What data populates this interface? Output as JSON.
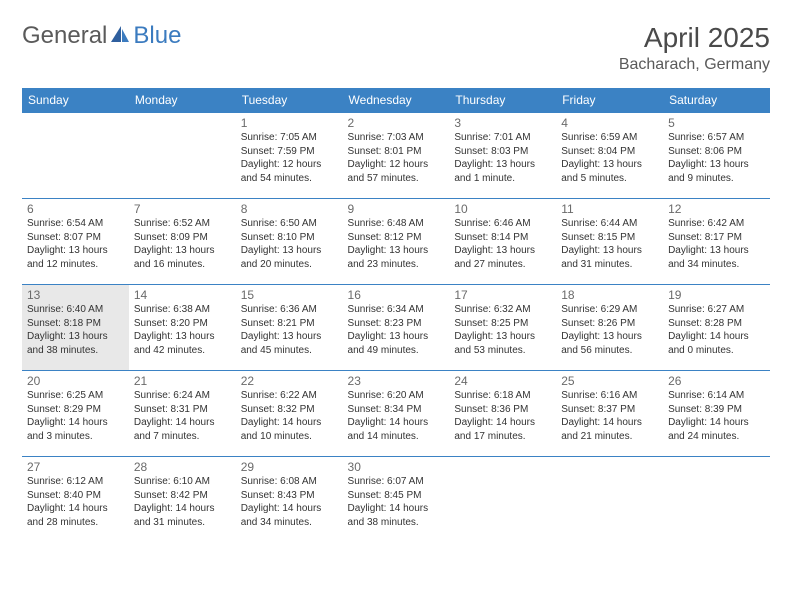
{
  "brand": {
    "part1": "General",
    "part2": "Blue"
  },
  "title": "April 2025",
  "location": "Bacharach, Germany",
  "colors": {
    "header_bg": "#3b82c4",
    "header_text": "#ffffff",
    "border": "#3b82c4",
    "today_bg": "#e8e8e8",
    "brand_blue": "#3b7bbf",
    "brand_gray": "#5a5a5a"
  },
  "weekdays": [
    "Sunday",
    "Monday",
    "Tuesday",
    "Wednesday",
    "Thursday",
    "Friday",
    "Saturday"
  ],
  "today_day": 13,
  "grid": [
    [
      null,
      null,
      {
        "d": 1,
        "sr": "7:05 AM",
        "ss": "7:59 PM",
        "dl": "12 hours and 54 minutes."
      },
      {
        "d": 2,
        "sr": "7:03 AM",
        "ss": "8:01 PM",
        "dl": "12 hours and 57 minutes."
      },
      {
        "d": 3,
        "sr": "7:01 AM",
        "ss": "8:03 PM",
        "dl": "13 hours and 1 minute."
      },
      {
        "d": 4,
        "sr": "6:59 AM",
        "ss": "8:04 PM",
        "dl": "13 hours and 5 minutes."
      },
      {
        "d": 5,
        "sr": "6:57 AM",
        "ss": "8:06 PM",
        "dl": "13 hours and 9 minutes."
      }
    ],
    [
      {
        "d": 6,
        "sr": "6:54 AM",
        "ss": "8:07 PM",
        "dl": "13 hours and 12 minutes."
      },
      {
        "d": 7,
        "sr": "6:52 AM",
        "ss": "8:09 PM",
        "dl": "13 hours and 16 minutes."
      },
      {
        "d": 8,
        "sr": "6:50 AM",
        "ss": "8:10 PM",
        "dl": "13 hours and 20 minutes."
      },
      {
        "d": 9,
        "sr": "6:48 AM",
        "ss": "8:12 PM",
        "dl": "13 hours and 23 minutes."
      },
      {
        "d": 10,
        "sr": "6:46 AM",
        "ss": "8:14 PM",
        "dl": "13 hours and 27 minutes."
      },
      {
        "d": 11,
        "sr": "6:44 AM",
        "ss": "8:15 PM",
        "dl": "13 hours and 31 minutes."
      },
      {
        "d": 12,
        "sr": "6:42 AM",
        "ss": "8:17 PM",
        "dl": "13 hours and 34 minutes."
      }
    ],
    [
      {
        "d": 13,
        "sr": "6:40 AM",
        "ss": "8:18 PM",
        "dl": "13 hours and 38 minutes."
      },
      {
        "d": 14,
        "sr": "6:38 AM",
        "ss": "8:20 PM",
        "dl": "13 hours and 42 minutes."
      },
      {
        "d": 15,
        "sr": "6:36 AM",
        "ss": "8:21 PM",
        "dl": "13 hours and 45 minutes."
      },
      {
        "d": 16,
        "sr": "6:34 AM",
        "ss": "8:23 PM",
        "dl": "13 hours and 49 minutes."
      },
      {
        "d": 17,
        "sr": "6:32 AM",
        "ss": "8:25 PM",
        "dl": "13 hours and 53 minutes."
      },
      {
        "d": 18,
        "sr": "6:29 AM",
        "ss": "8:26 PM",
        "dl": "13 hours and 56 minutes."
      },
      {
        "d": 19,
        "sr": "6:27 AM",
        "ss": "8:28 PM",
        "dl": "14 hours and 0 minutes."
      }
    ],
    [
      {
        "d": 20,
        "sr": "6:25 AM",
        "ss": "8:29 PM",
        "dl": "14 hours and 3 minutes."
      },
      {
        "d": 21,
        "sr": "6:24 AM",
        "ss": "8:31 PM",
        "dl": "14 hours and 7 minutes."
      },
      {
        "d": 22,
        "sr": "6:22 AM",
        "ss": "8:32 PM",
        "dl": "14 hours and 10 minutes."
      },
      {
        "d": 23,
        "sr": "6:20 AM",
        "ss": "8:34 PM",
        "dl": "14 hours and 14 minutes."
      },
      {
        "d": 24,
        "sr": "6:18 AM",
        "ss": "8:36 PM",
        "dl": "14 hours and 17 minutes."
      },
      {
        "d": 25,
        "sr": "6:16 AM",
        "ss": "8:37 PM",
        "dl": "14 hours and 21 minutes."
      },
      {
        "d": 26,
        "sr": "6:14 AM",
        "ss": "8:39 PM",
        "dl": "14 hours and 24 minutes."
      }
    ],
    [
      {
        "d": 27,
        "sr": "6:12 AM",
        "ss": "8:40 PM",
        "dl": "14 hours and 28 minutes."
      },
      {
        "d": 28,
        "sr": "6:10 AM",
        "ss": "8:42 PM",
        "dl": "14 hours and 31 minutes."
      },
      {
        "d": 29,
        "sr": "6:08 AM",
        "ss": "8:43 PM",
        "dl": "14 hours and 34 minutes."
      },
      {
        "d": 30,
        "sr": "6:07 AM",
        "ss": "8:45 PM",
        "dl": "14 hours and 38 minutes."
      },
      null,
      null,
      null
    ]
  ],
  "labels": {
    "sunrise": "Sunrise:",
    "sunset": "Sunset:",
    "daylight": "Daylight:"
  }
}
